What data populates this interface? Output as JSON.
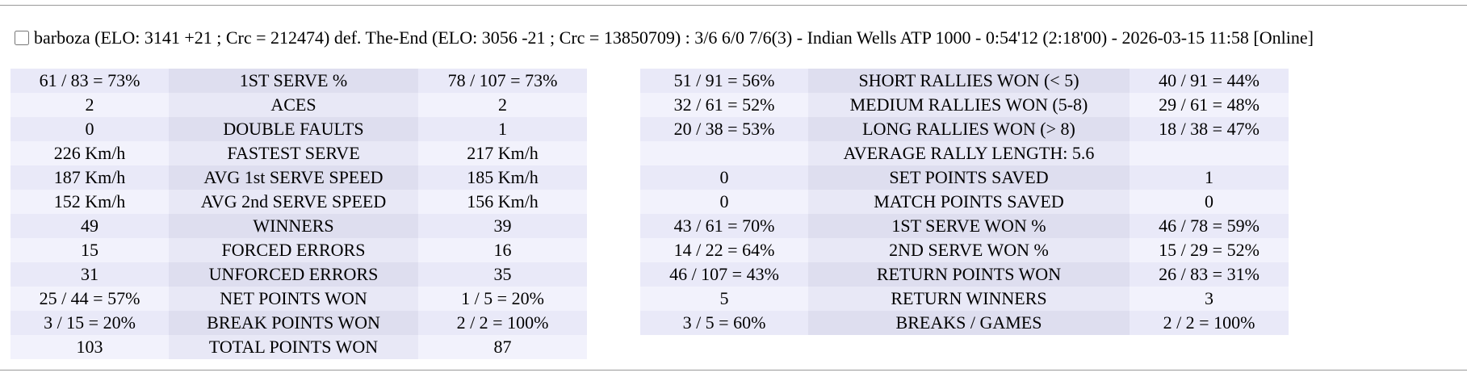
{
  "header": {
    "text": "barboza (ELO: 3141 +21 ; Crc = 212474) def. The-End (ELO: 3056 -21 ; Crc = 13850709) : 3/6 6/0 7/6(3) - Indian Wells ATP 1000 - 0:54'12 (2:18'00) - 2026-03-15 11:58 [Online]"
  },
  "left_table": {
    "rows": [
      [
        "61 / 83 = 73%",
        "1ST SERVE %",
        "78 / 107 = 73%"
      ],
      [
        "2",
        "ACES",
        "2"
      ],
      [
        "0",
        "DOUBLE FAULTS",
        "1"
      ],
      [
        "226 Km/h",
        "FASTEST SERVE",
        "217 Km/h"
      ],
      [
        "187 Km/h",
        "AVG 1st SERVE SPEED",
        "185 Km/h"
      ],
      [
        "152 Km/h",
        "AVG 2nd SERVE SPEED",
        "156 Km/h"
      ],
      [
        "49",
        "WINNERS",
        "39"
      ],
      [
        "15",
        "FORCED ERRORS",
        "16"
      ],
      [
        "31",
        "UNFORCED ERRORS",
        "35"
      ],
      [
        "25 / 44 = 57%",
        "NET POINTS WON",
        "1 / 5 = 20%"
      ],
      [
        "3 / 15 = 20%",
        "BREAK POINTS WON",
        "2 / 2 = 100%"
      ],
      [
        "103",
        "TOTAL POINTS WON",
        "87"
      ]
    ]
  },
  "right_table": {
    "rows": [
      [
        "51 / 91 = 56%",
        "SHORT RALLIES WON (< 5)",
        "40 / 91 = 44%"
      ],
      [
        "32 / 61 = 52%",
        "MEDIUM RALLIES WON (5-8)",
        "29 / 61 = 48%"
      ],
      [
        "20 / 38 = 53%",
        "LONG RALLIES WON (> 8)",
        "18 / 38 = 47%"
      ],
      [
        "AVERAGE RALLY LENGTH: 5.6"
      ],
      [
        "0",
        "SET POINTS SAVED",
        "1"
      ],
      [
        "0",
        "MATCH POINTS SAVED",
        "0"
      ],
      [
        "43 / 61 = 70%",
        "1ST SERVE WON %",
        "46 / 78 = 59%"
      ],
      [
        "14 / 22 = 64%",
        "2ND SERVE WON %",
        "15 / 29 = 52%"
      ],
      [
        "46 / 107 = 43%",
        "RETURN POINTS WON",
        "26 / 83 = 31%"
      ],
      [
        "5",
        "RETURN WINNERS",
        "3"
      ],
      [
        "3 / 5 = 60%",
        "BREAKS / GAMES",
        "2 / 2 = 100%"
      ]
    ]
  }
}
